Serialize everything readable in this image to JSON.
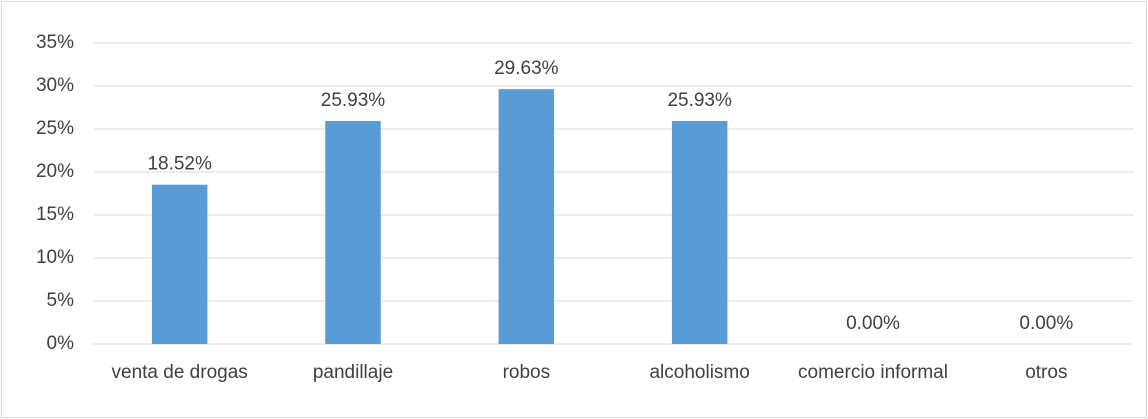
{
  "chart_data": {
    "type": "bar",
    "categories": [
      "venta de drogas",
      "pandillaje",
      "robos",
      "alcoholismo",
      "comercio informal",
      "otros"
    ],
    "values": [
      18.52,
      25.93,
      29.63,
      25.93,
      0,
      0
    ],
    "value_labels": [
      "18.52%",
      "25.93%",
      "29.63%",
      "25.93%",
      "0.00%",
      "0.00%"
    ],
    "color": "#5b9bd5",
    "ylim": [
      0,
      35
    ],
    "yticks": [
      {
        "value": 0,
        "label": "0%"
      },
      {
        "value": 5,
        "label": "5%"
      },
      {
        "value": 10,
        "label": "10%"
      },
      {
        "value": 15,
        "label": "15%"
      },
      {
        "value": 20,
        "label": "20%"
      },
      {
        "value": 25,
        "label": "25%"
      },
      {
        "value": 30,
        "label": "30%"
      },
      {
        "value": 35,
        "label": "35%"
      }
    ],
    "grid": true
  }
}
